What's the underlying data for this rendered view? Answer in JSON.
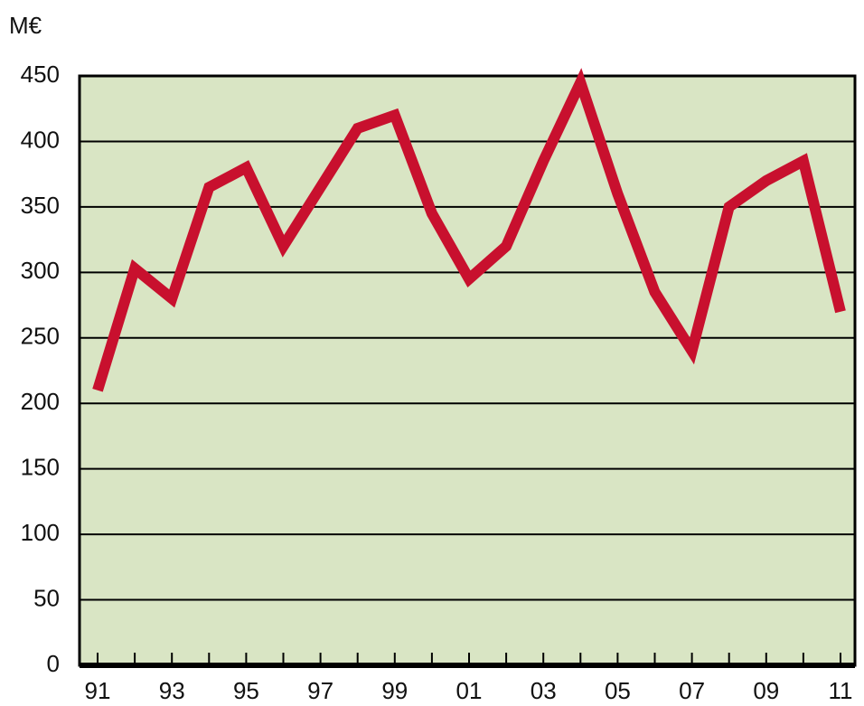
{
  "chart_data": {
    "type": "line",
    "y_label": "M€",
    "categories": [
      "91",
      null,
      "93",
      null,
      "95",
      null,
      "97",
      null,
      "99",
      null,
      "01",
      null,
      "03",
      null,
      "05",
      null,
      "07",
      null,
      "09",
      null,
      "11"
    ],
    "series": [
      {
        "color": "#c8102e",
        "values": [
          210,
          303,
          280,
          365,
          380,
          320,
          365,
          410,
          420,
          345,
          295,
          320,
          385,
          445,
          360,
          285,
          240,
          350,
          370,
          385,
          270
        ]
      }
    ],
    "ylim": [
      0,
      450
    ],
    "yticks": [
      0,
      50,
      100,
      150,
      200,
      250,
      300,
      350,
      400,
      450
    ],
    "grid": true,
    "background": "#d9e5c4"
  }
}
